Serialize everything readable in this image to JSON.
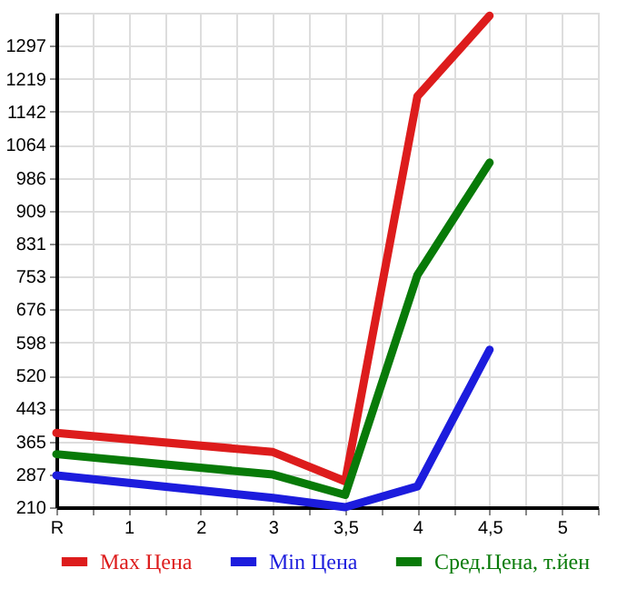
{
  "chart_data": {
    "type": "line",
    "categories": [
      "R",
      "1",
      "2",
      "3",
      "3,5",
      "4",
      "4,5",
      "5"
    ],
    "series": [
      {
        "name": "Max Цена",
        "color": "#dd1c1c",
        "values": [
          385,
          null,
          null,
          340,
          271,
          1178,
          1368,
          null
        ]
      },
      {
        "name": "Min Цена",
        "color": "#1c1cdd",
        "values": [
          285,
          null,
          null,
          232,
          210,
          259,
          581,
          null
        ]
      },
      {
        "name": "Сред.Цена, т.йен",
        "color": "#087a08",
        "values": [
          335,
          null,
          null,
          287,
          239,
          757,
          1022,
          null
        ]
      }
    ],
    "ylim": [
      210,
      1375
    ],
    "yticks": [
      210,
      287,
      365,
      443,
      520,
      598,
      676,
      753,
      831,
      909,
      986,
      1064,
      1142,
      1219,
      1297
    ],
    "grid": true,
    "legend": "bottom",
    "marker": "none",
    "line_style": "solid"
  }
}
